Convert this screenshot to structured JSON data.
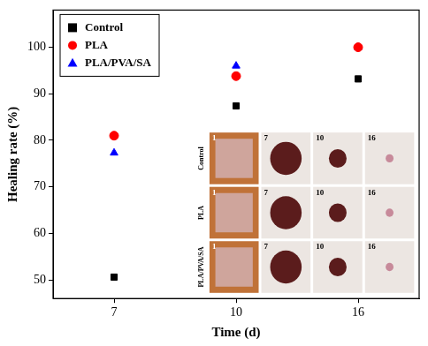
{
  "chart_data": {
    "type": "scatter",
    "x_label": "Time (d)",
    "y_label": "Healing rate (%)",
    "categories": [
      "7",
      "10",
      "16"
    ],
    "series": [
      {
        "name": "Control",
        "color": "#000000",
        "marker": "square",
        "values": [
          50.6,
          87.4,
          93.2
        ]
      },
      {
        "name": "PLA",
        "color": "#ff0000",
        "marker": "circle",
        "values": [
          81.0,
          93.8,
          100
        ]
      },
      {
        "name": "PLA/PVA/SA",
        "color": "#0000ff",
        "marker": "triangle",
        "values": [
          77.3,
          96.0,
          100
        ]
      }
    ],
    "ylim": [
      46,
      108
    ],
    "yticks": [
      50,
      60,
      70,
      80,
      90,
      100
    ],
    "grid": false,
    "legend": "upper left",
    "inset": {
      "rows": [
        "Control",
        "PLA",
        "PLA/PVA/SA"
      ],
      "days": [
        1,
        7,
        10,
        16
      ]
    }
  }
}
